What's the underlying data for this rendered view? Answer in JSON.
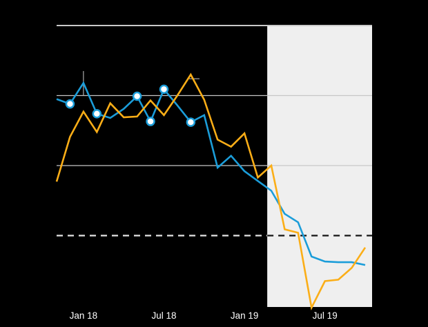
{
  "chart_data": {
    "type": "line",
    "title": "",
    "subtitle": "",
    "legend": null,
    "x_axis": {
      "categories": [
        "Nov 17",
        "Dec 17",
        "Jan 18",
        "Feb 18",
        "Mar 18",
        "Apr 18",
        "May 18",
        "Jun 18",
        "Jul 18",
        "Aug 18",
        "Sep 18",
        "Oct 18",
        "Nov 18",
        "Dec 18",
        "Jan 19",
        "Feb 19",
        "Mar 19",
        "Apr 19",
        "May 19",
        "Jun 19",
        "Jul 19",
        "Aug 19",
        "Sep 19",
        "Oct 19"
      ],
      "tick_labels": [
        {
          "label": "Jan 18",
          "index": 2
        },
        {
          "label": "Jul 18",
          "index": 8
        },
        {
          "label": "Jan 19",
          "index": 14
        },
        {
          "label": "Jul 19",
          "index": 20
        }
      ]
    },
    "y_axis": {
      "tick_labels_visible": false,
      "units": "unlabeled gridline units (1 unit = one gridline interval)",
      "ylim": [
        0,
        4
      ],
      "solid_gridlines_at": [
        2,
        3,
        4
      ],
      "dashed_reference_line_at": 1,
      "grid": true
    },
    "series": [
      {
        "name": "blue",
        "color": "#1b9dd9",
        "values": [
          2.95,
          2.88,
          3.18,
          2.74,
          2.68,
          2.81,
          2.99,
          2.63,
          3.09,
          2.86,
          2.62,
          2.72,
          1.97,
          2.14,
          1.92,
          1.78,
          1.64,
          1.31,
          1.19,
          0.7,
          0.63,
          0.62,
          0.62,
          0.58
        ],
        "marker_point_indices": [
          1,
          3,
          6,
          7,
          8,
          10
        ]
      },
      {
        "name": "orange",
        "color": "#fbae17",
        "values": [
          1.77,
          2.41,
          2.77,
          2.48,
          2.89,
          2.69,
          2.7,
          2.93,
          2.72,
          3.0,
          3.3,
          2.94,
          2.37,
          2.27,
          2.46,
          1.83,
          2.0,
          1.09,
          1.04,
          -0.03,
          0.35,
          0.37,
          0.54,
          0.83
        ],
        "marker_point_indices": []
      }
    ],
    "highlight_region": {
      "from_x_index": 15.7,
      "to_x": "right edge of plot",
      "color": "#efefef"
    },
    "annotations": [
      {
        "kind": "vertical-tick",
        "x_index": 2,
        "v_from": 3.0,
        "v_to": 3.35,
        "color": "#aaaaaa"
      },
      {
        "kind": "horizontal-tick",
        "x_index_from": 9.88,
        "x_index_to": 10.65,
        "v": 3.24,
        "color": "#aaaaaa"
      }
    ]
  },
  "colors": {
    "background": "#000000",
    "grid": "#c6c6c6",
    "grid_top": "#c9c9c9",
    "dashed_on_dark": "#e6e6e6",
    "dashed_on_light": "#121212",
    "axis_label_text": "#ffffff",
    "marker_fill": "#ffffff"
  }
}
